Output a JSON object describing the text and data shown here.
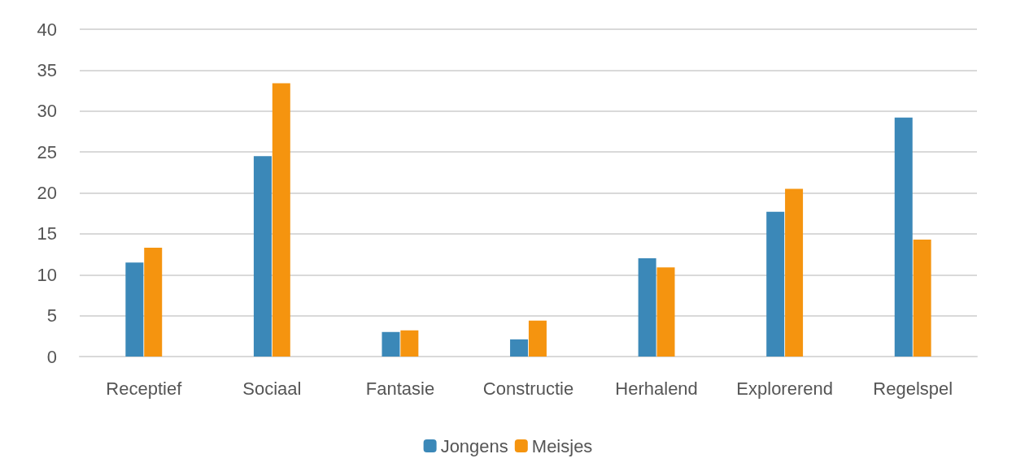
{
  "chart_data": {
    "type": "bar",
    "categories": [
      "Receptief",
      "Sociaal",
      "Fantasie",
      "Constructie",
      "Herhalend",
      "Explorerend",
      "Regelspel"
    ],
    "series": [
      {
        "name": "Jongens",
        "color": "#3b88b8",
        "values": [
          11.5,
          24.5,
          3,
          2.1,
          12,
          17.7,
          29.2
        ]
      },
      {
        "name": "Meisjes",
        "color": "#f5940f",
        "values": [
          13.3,
          33.4,
          3.2,
          4.4,
          10.9,
          20.5,
          14.3
        ]
      }
    ],
    "ylim": [
      0,
      40
    ],
    "yticks": [
      0,
      5,
      10,
      15,
      20,
      25,
      30,
      35,
      40
    ],
    "grid": "y",
    "legend": "bottom"
  }
}
